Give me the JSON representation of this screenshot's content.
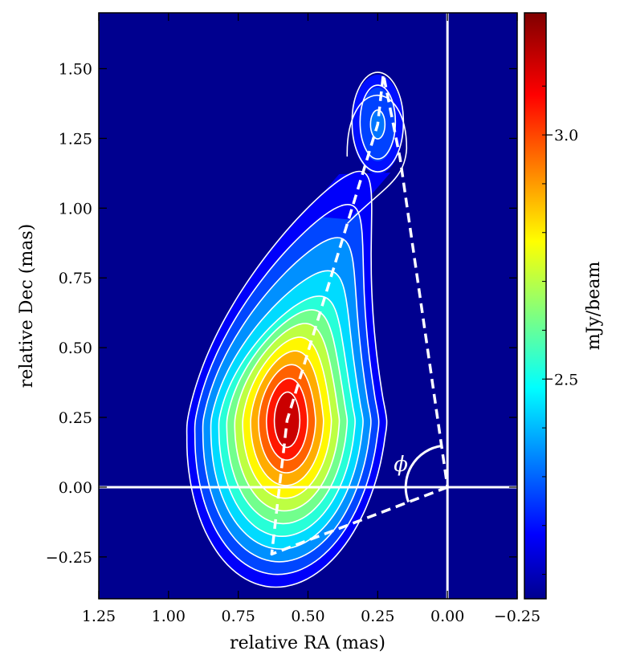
{
  "chart_data": {
    "type": "heatmap",
    "xlabel": "relative RA (mas)",
    "ylabel": "relative Dec (mas)",
    "xlim": [
      1.25,
      -0.25
    ],
    "ylim": [
      -0.4,
      1.7
    ],
    "x_ticks": [
      "1.25",
      "1.00",
      "0.75",
      "0.50",
      "0.25",
      "0.00",
      "−0.25"
    ],
    "x_tick_values": [
      1.25,
      1.0,
      0.75,
      0.5,
      0.25,
      0.0,
      -0.25
    ],
    "y_ticks": [
      "−0.25",
      "0.00",
      "0.25",
      "0.50",
      "0.75",
      "1.00",
      "1.25",
      "1.50"
    ],
    "y_tick_values": [
      -0.25,
      0.0,
      0.25,
      0.5,
      0.75,
      1.0,
      1.25,
      1.5
    ],
    "colorbar": {
      "label": "mJy/beam",
      "min": 2.05,
      "max": 3.25,
      "ticks": [
        "2.5",
        "3.0"
      ],
      "tick_values": [
        2.5,
        3.0
      ],
      "colormap": "jet"
    },
    "components": [
      {
        "x": 0.575,
        "y": 0.24,
        "peak": 3.25
      },
      {
        "x": 0.25,
        "y": 1.3,
        "peak": 2.15
      }
    ],
    "reference_lines": {
      "x": 0.0,
      "y": 0.0
    },
    "dashed_path": [
      [
        0.0,
        0.0
      ],
      [
        0.63,
        -0.24
      ],
      [
        0.575,
        0.24
      ],
      [
        0.25,
        1.3
      ],
      [
        0.23,
        1.48
      ],
      [
        0.17,
        1.18
      ],
      [
        0.0,
        0.0
      ]
    ],
    "angle_annotation": {
      "label": "ϕ",
      "x": 0.0,
      "y": 0.0
    }
  },
  "colors": {
    "background": "#00008f",
    "contour": "#ffffff",
    "reference_line": "#ffffff"
  }
}
